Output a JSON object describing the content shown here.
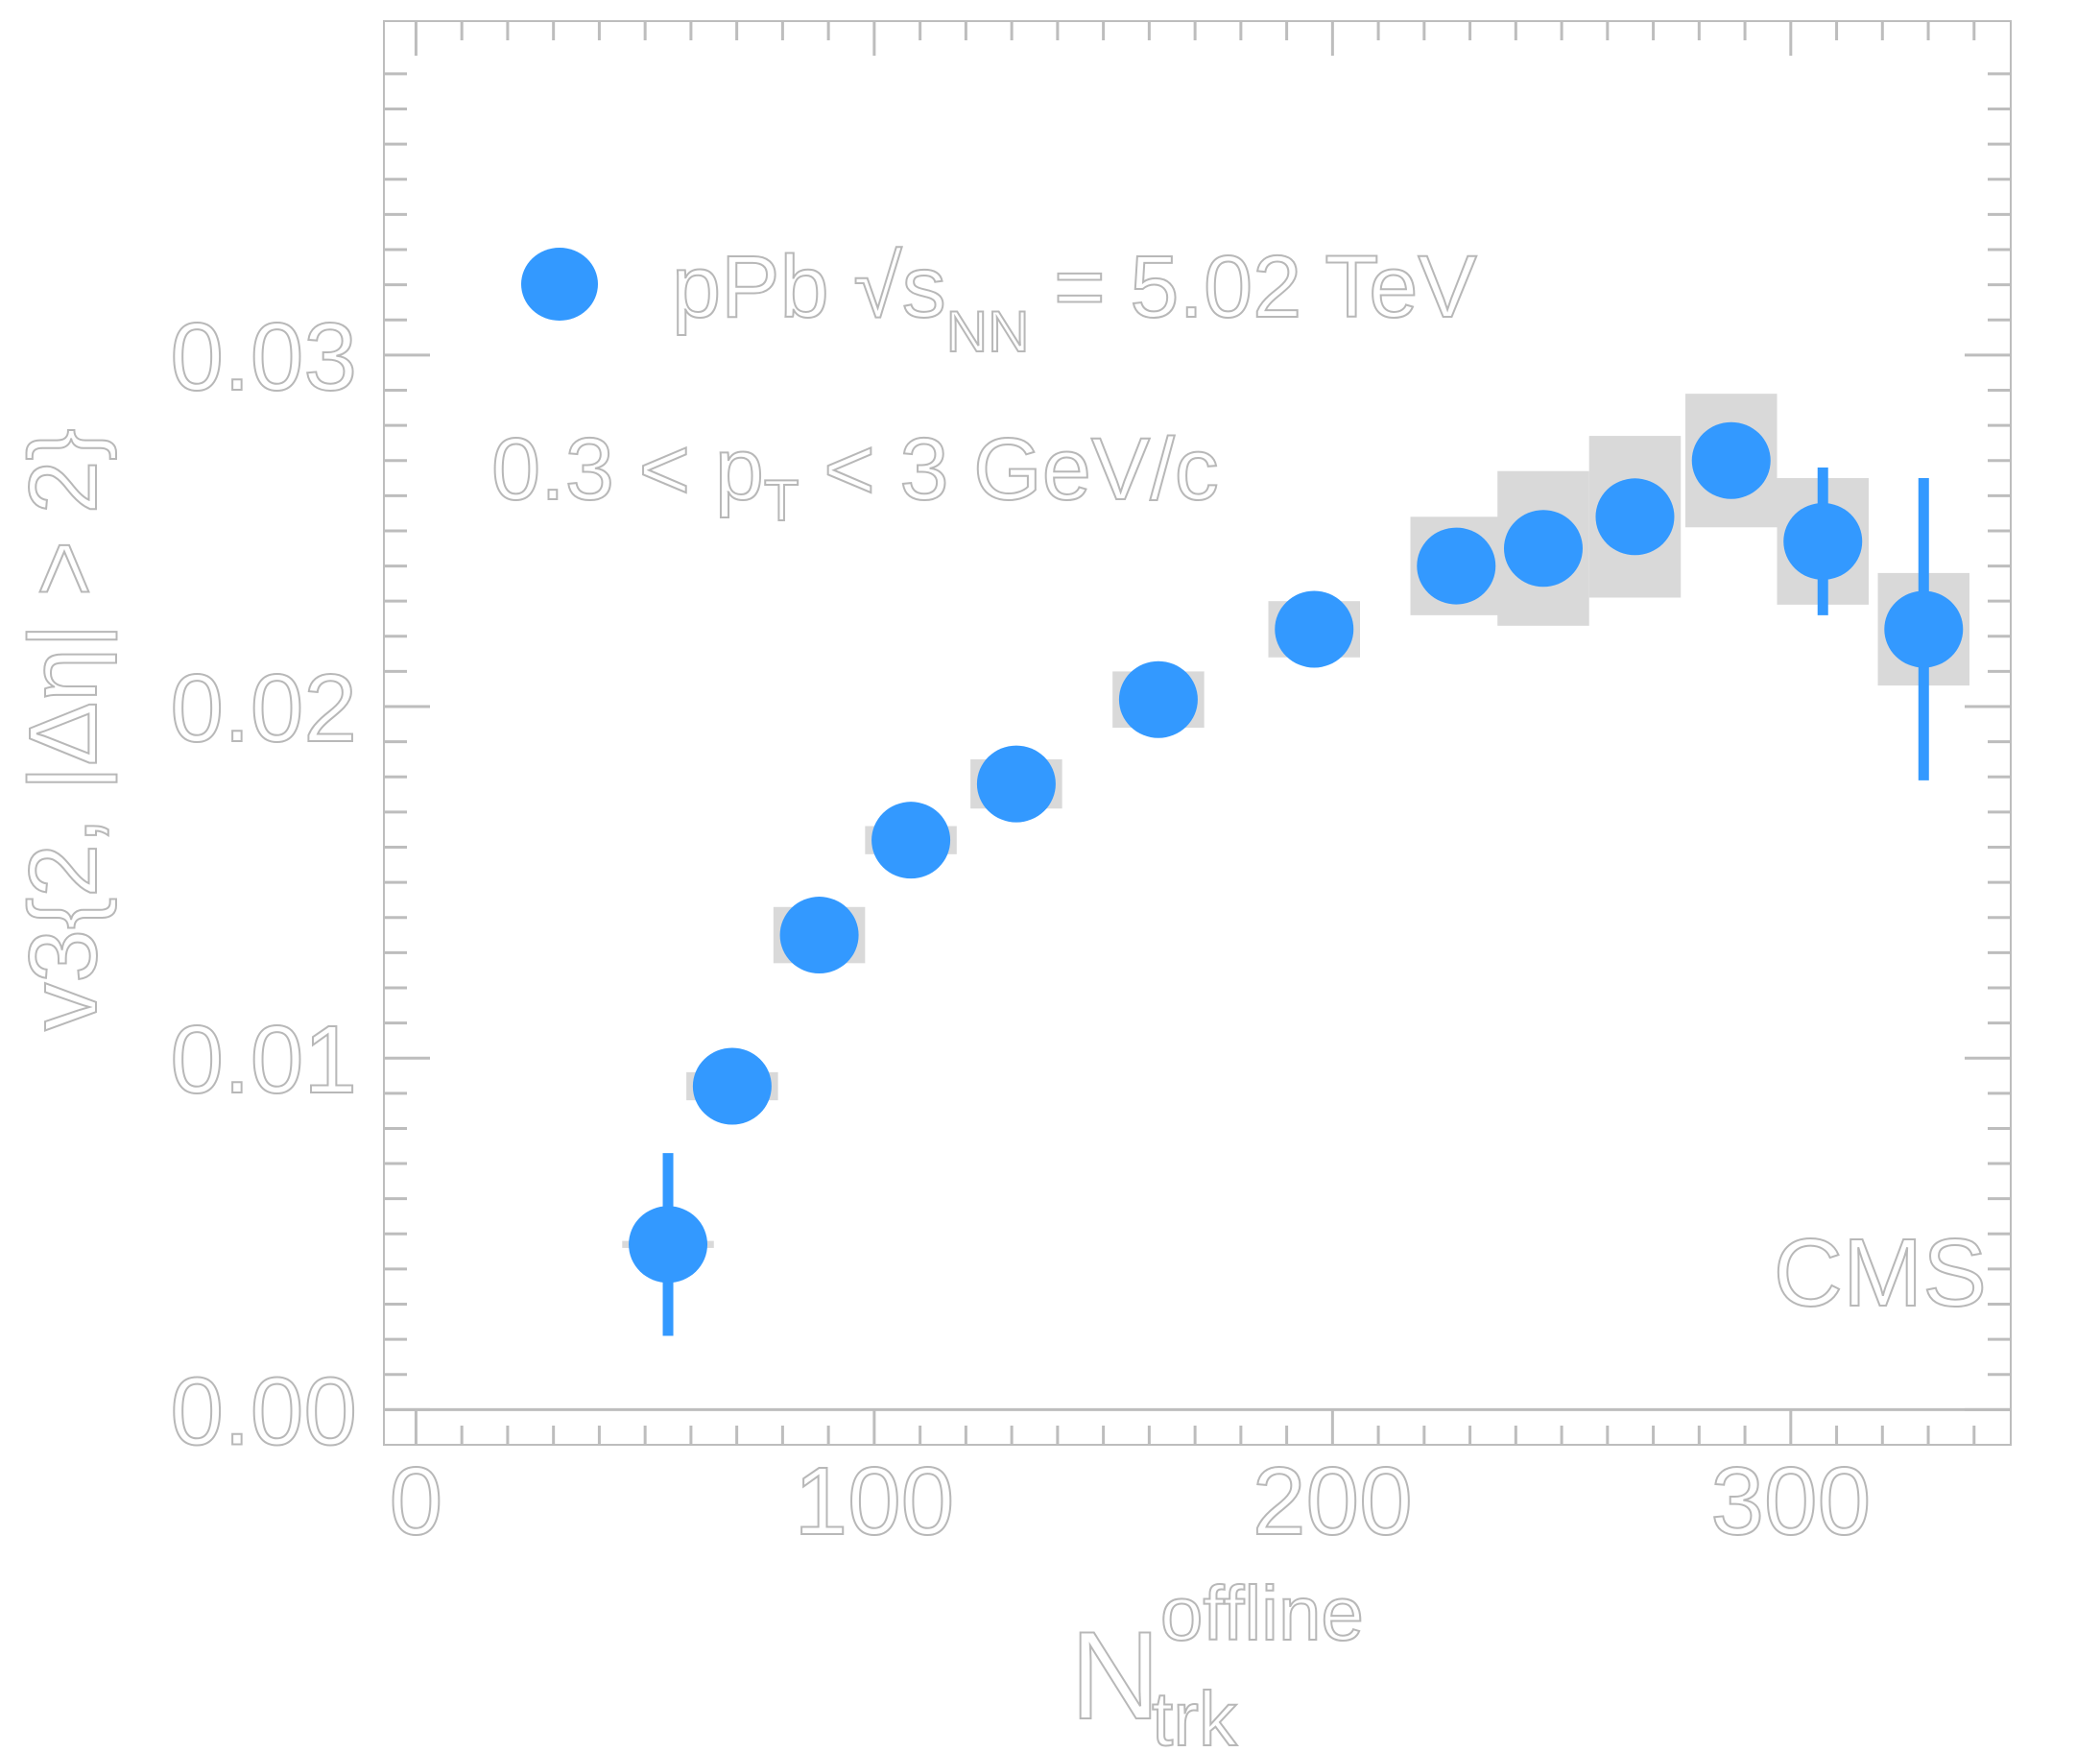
{
  "chart_data": {
    "type": "scatter",
    "x_axis": {
      "label_main": "N",
      "label_sup": "offline",
      "label_sub": "trk",
      "range": [
        -7,
        348
      ],
      "ticks": [
        "0",
        "100",
        "200",
        "300"
      ],
      "tick_values": [
        0,
        100,
        200,
        300
      ]
    },
    "y_axis": {
      "label": "v3{2, |Δη| > 2}",
      "range": [
        -0.001,
        0.0395
      ],
      "ticks": [
        "0.00",
        "0.01",
        "0.02",
        "0.03"
      ],
      "tick_values": [
        0.0,
        0.01,
        0.02,
        0.03
      ]
    },
    "legend": {
      "position": "top-left",
      "entry": "pPb √sNN = 5.02 TeV",
      "parts": {
        "main": "pPb  √s",
        "sub": "NN",
        "tail": " = 5.02 TeV"
      }
    },
    "annotation": "0.3 < pT < 3 GeV/c",
    "annotation_parts": {
      "before": "0.3 < p",
      "sub": "T",
      "after": " < 3 GeV/c"
    },
    "watermark": "CMS",
    "colors": {
      "marker": "#3399ff",
      "syst_box": "#d9d9d9",
      "axis": "#bdbdbd"
    },
    "series": [
      {
        "points": [
          {
            "x": 55,
            "y": 0.0047,
            "stat": 0.0026,
            "syst": 0.0001,
            "halfwidth": 10
          },
          {
            "x": 69,
            "y": 0.0092,
            "stat": 0.0003,
            "syst": 0.0004,
            "halfwidth": 10
          },
          {
            "x": 88,
            "y": 0.0135,
            "stat": 0.0003,
            "syst": 0.0008,
            "halfwidth": 10
          },
          {
            "x": 108,
            "y": 0.0162,
            "stat": 0.0003,
            "syst": 0.0004,
            "halfwidth": 10
          },
          {
            "x": 131,
            "y": 0.0178,
            "stat": 0.0003,
            "syst": 0.0007,
            "halfwidth": 10
          },
          {
            "x": 162,
            "y": 0.0202,
            "stat": 0.0002,
            "syst": 0.0008,
            "halfwidth": 10
          },
          {
            "x": 196,
            "y": 0.0222,
            "stat": 0.0002,
            "syst": 0.0008,
            "halfwidth": 10
          },
          {
            "x": 227,
            "y": 0.024,
            "stat": 0.0002,
            "syst": 0.0014,
            "halfwidth": 10
          },
          {
            "x": 246,
            "y": 0.0245,
            "stat": 0.0002,
            "syst": 0.0022,
            "halfwidth": 10
          },
          {
            "x": 266,
            "y": 0.0254,
            "stat": 0.0002,
            "syst": 0.0023,
            "halfwidth": 10
          },
          {
            "x": 287,
            "y": 0.027,
            "stat": 0.0002,
            "syst": 0.0019,
            "halfwidth": 10
          },
          {
            "x": 307,
            "y": 0.0247,
            "stat": 0.0021,
            "syst": 0.0018,
            "halfwidth": 10
          },
          {
            "x": 329,
            "y": 0.0222,
            "stat": 0.0043,
            "syst": 0.0016,
            "halfwidth": 10
          }
        ]
      }
    ]
  }
}
